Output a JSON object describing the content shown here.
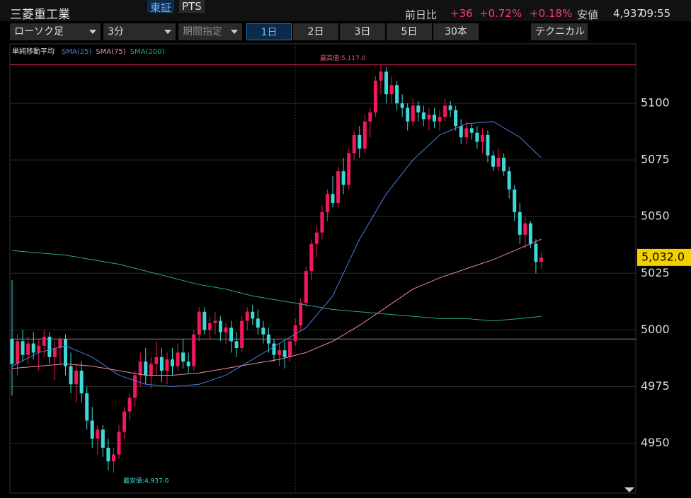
{
  "header": {
    "name": "三菱重工業",
    "market": "東証",
    "pts": "PTS",
    "change_label": "前日比",
    "change": "+36",
    "change_pct": "+0.72%",
    "change_pct2": "+0.18%",
    "low_label": "安値",
    "low": "4,937",
    "time": "09:55"
  },
  "toolbar": {
    "chart_type": "ローソク足",
    "interval": "3分",
    "period": "期間指定",
    "ranges": [
      "1日",
      "2日",
      "3日",
      "5日",
      "30本"
    ],
    "technical": "テクニカル"
  },
  "chart_data": {
    "type": "candlestick",
    "indicator": "単純移動平均",
    "ylim": [
      4928,
      5125
    ],
    "yticks": [
      4950,
      4975,
      5000,
      5025,
      5050,
      5075,
      5100
    ],
    "up_color": "#f0195a",
    "down_color": "#3fd8d8",
    "last_price": {
      "value": 5032,
      "label": "5,032.0"
    },
    "reference_line": 4996,
    "high_annotation": {
      "text": "最高値:5,117.0",
      "value": 5117
    },
    "low_annotation": {
      "text": "最安値:4,937.0",
      "value": 4937
    },
    "candles": [
      [
        4996,
        5022,
        4971,
        4985
      ],
      [
        4985,
        4998,
        4980,
        4995
      ],
      [
        4995,
        5000,
        4986,
        4989
      ],
      [
        4989,
        4997,
        4985,
        4994
      ],
      [
        4994,
        4999,
        4987,
        4990
      ],
      [
        4990,
        4996,
        4982,
        4993
      ],
      [
        4993,
        5000,
        4988,
        4997
      ],
      [
        4997,
        4999,
        4985,
        4988
      ],
      [
        4988,
        4995,
        4978,
        4992
      ],
      [
        4992,
        4997,
        4985,
        4996
      ],
      [
        4996,
        4998,
        4980,
        4984
      ],
      [
        4984,
        4990,
        4972,
        4976
      ],
      [
        4976,
        4985,
        4968,
        4982
      ],
      [
        4982,
        4986,
        4968,
        4972
      ],
      [
        4972,
        4975,
        4956,
        4960
      ],
      [
        4960,
        4966,
        4948,
        4952
      ],
      [
        4952,
        4958,
        4945,
        4956
      ],
      [
        4956,
        4958,
        4944,
        4948
      ],
      [
        4948,
        4952,
        4938,
        4942
      ],
      [
        4942,
        4948,
        4937,
        4945
      ],
      [
        4945,
        4958,
        4943,
        4955
      ],
      [
        4955,
        4966,
        4952,
        4964
      ],
      [
        4964,
        4972,
        4960,
        4970
      ],
      [
        4970,
        4982,
        4966,
        4980
      ],
      [
        4980,
        4990,
        4975,
        4986
      ],
      [
        4986,
        4992,
        4976,
        4980
      ],
      [
        4980,
        4988,
        4974,
        4985
      ],
      [
        4985,
        4995,
        4980,
        4988
      ],
      [
        4988,
        4992,
        4977,
        4982
      ],
      [
        4982,
        4990,
        4976,
        4987
      ],
      [
        4987,
        4992,
        4980,
        4984
      ],
      [
        4984,
        4994,
        4982,
        4990
      ],
      [
        4990,
        4996,
        4983,
        4986
      ],
      [
        4986,
        4990,
        4981,
        4984
      ],
      [
        4984,
        5000,
        4982,
        4998
      ],
      [
        4998,
        5010,
        4995,
        5008
      ],
      [
        5008,
        5010,
        4998,
        5000
      ],
      [
        5000,
        5006,
        4996,
        5003
      ],
      [
        5003,
        5008,
        4998,
        5004
      ],
      [
        5004,
        5006,
        4995,
        4999
      ],
      [
        4999,
        5003,
        4994,
        5001
      ],
      [
        5001,
        5004,
        4990,
        4995
      ],
      [
        4995,
        4999,
        4988,
        4992
      ],
      [
        4992,
        5006,
        4990,
        5004
      ],
      [
        5004,
        5010,
        5000,
        5008
      ],
      [
        5008,
        5011,
        5002,
        5005
      ],
      [
        5005,
        5009,
        4998,
        5001
      ],
      [
        5001,
        5004,
        4994,
        4998
      ],
      [
        4998,
        5001,
        4990,
        4994
      ],
      [
        4994,
        4996,
        4986,
        4989
      ],
      [
        4989,
        4994,
        4984,
        4991
      ],
      [
        4991,
        4995,
        4983,
        4988
      ],
      [
        4988,
        4997,
        4986,
        4995
      ],
      [
        4995,
        5005,
        4993,
        5002
      ],
      [
        5002,
        5014,
        5000,
        5012
      ],
      [
        5012,
        5028,
        5010,
        5026
      ],
      [
        5026,
        5040,
        5022,
        5038
      ],
      [
        5038,
        5046,
        5032,
        5043
      ],
      [
        5043,
        5055,
        5040,
        5052
      ],
      [
        5052,
        5062,
        5048,
        5060
      ],
      [
        5060,
        5068,
        5054,
        5056
      ],
      [
        5056,
        5072,
        5054,
        5070
      ],
      [
        5070,
        5076,
        5060,
        5064
      ],
      [
        5064,
        5080,
        5062,
        5078
      ],
      [
        5078,
        5088,
        5075,
        5086
      ],
      [
        5086,
        5090,
        5076,
        5080
      ],
      [
        5080,
        5095,
        5078,
        5092
      ],
      [
        5092,
        5098,
        5085,
        5096
      ],
      [
        5096,
        5112,
        5094,
        5110
      ],
      [
        5110,
        5117,
        5104,
        5114
      ],
      [
        5114,
        5116,
        5100,
        5104
      ],
      [
        5104,
        5112,
        5100,
        5108
      ],
      [
        5108,
        5110,
        5097,
        5100
      ],
      [
        5100,
        5104,
        5094,
        5098
      ],
      [
        5098,
        5100,
        5088,
        5092
      ],
      [
        5092,
        5102,
        5090,
        5099
      ],
      [
        5099,
        5101,
        5092,
        5096
      ],
      [
        5096,
        5099,
        5090,
        5093
      ],
      [
        5093,
        5098,
        5088,
        5095
      ],
      [
        5095,
        5098,
        5089,
        5092
      ],
      [
        5092,
        5097,
        5088,
        5094
      ],
      [
        5094,
        5102,
        5092,
        5099
      ],
      [
        5099,
        5101,
        5094,
        5097
      ],
      [
        5097,
        5099,
        5088,
        5090
      ],
      [
        5090,
        5093,
        5082,
        5085
      ],
      [
        5085,
        5092,
        5082,
        5089
      ],
      [
        5089,
        5091,
        5084,
        5087
      ],
      [
        5087,
        5090,
        5080,
        5083
      ],
      [
        5083,
        5089,
        5078,
        5086
      ],
      [
        5086,
        5088,
        5074,
        5077
      ],
      [
        5077,
        5079,
        5070,
        5072
      ],
      [
        5072,
        5080,
        5070,
        5076
      ],
      [
        5076,
        5078,
        5068,
        5070
      ],
      [
        5070,
        5072,
        5058,
        5062
      ],
      [
        5062,
        5064,
        5048,
        5052
      ],
      [
        5052,
        5056,
        5038,
        5042
      ],
      [
        5042,
        5050,
        5036,
        5047
      ],
      [
        5047,
        5048,
        5036,
        5038
      ],
      [
        5038,
        5040,
        5025,
        5030
      ],
      [
        5030,
        5034,
        5027,
        5032
      ]
    ],
    "series": [
      {
        "name": "SMA(25)",
        "color": "#4a7fe0",
        "x": [
          0,
          5,
          10,
          15,
          20,
          25,
          30,
          35,
          40,
          45,
          50,
          55,
          60,
          65,
          70,
          75,
          80,
          85,
          90,
          95,
          99
        ],
        "values": [
          4984,
          4990,
          4993,
          4988,
          4980,
          4976,
          4975,
          4976,
          4980,
          4987,
          4994,
          5001,
          5015,
          5040,
          5060,
          5075,
          5086,
          5091,
          5092,
          5085,
          5076
        ]
      },
      {
        "name": "SMA(75)",
        "color": "#f08a9a",
        "x": [
          0,
          5,
          10,
          15,
          20,
          25,
          30,
          35,
          40,
          45,
          50,
          55,
          60,
          65,
          70,
          75,
          80,
          85,
          90,
          95,
          99
        ],
        "values": [
          4983,
          4984,
          4985,
          4984,
          4982,
          4980,
          4980,
          4981,
          4983,
          4985,
          4987,
          4990,
          4995,
          5002,
          5010,
          5018,
          5023,
          5027,
          5031,
          5036,
          5040
        ]
      },
      {
        "name": "SMA(200)",
        "color": "#2fa77a",
        "x": [
          0,
          5,
          10,
          15,
          20,
          25,
          30,
          35,
          40,
          45,
          50,
          55,
          60,
          65,
          70,
          75,
          80,
          85,
          90,
          95,
          99
        ],
        "values": [
          5035,
          5034,
          5033,
          5031,
          5029,
          5026,
          5023,
          5020,
          5018,
          5015,
          5013,
          5011,
          5009,
          5008,
          5007,
          5006,
          5005,
          5005,
          5004,
          5005,
          5006
        ]
      }
    ]
  }
}
